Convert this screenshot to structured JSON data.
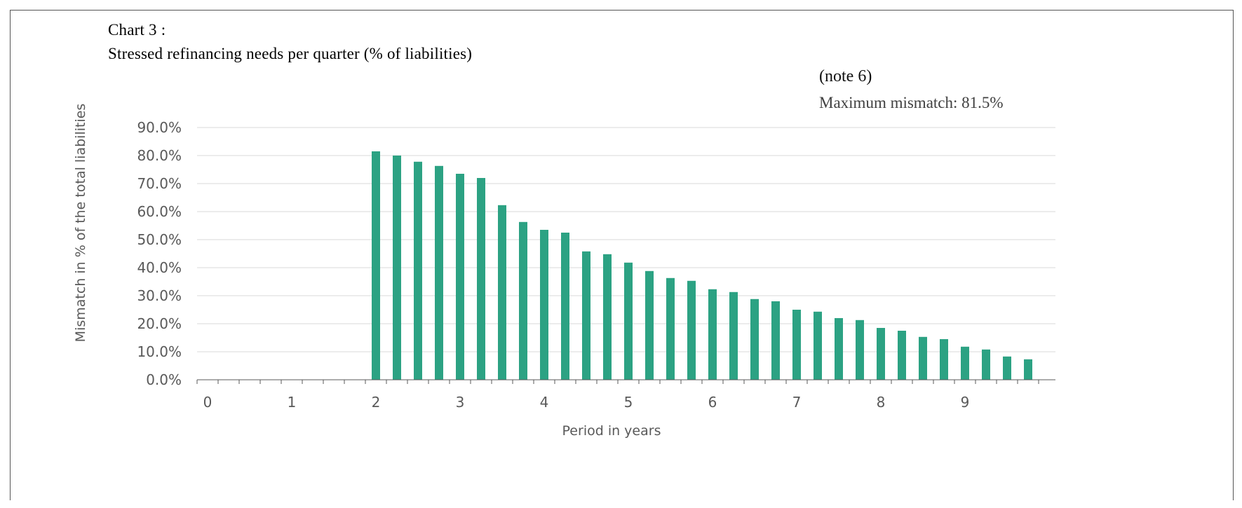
{
  "chart": {
    "label": "Chart 3 :",
    "title": "Stressed refinancing needs per quarter  (% of liabilities)",
    "note": "(note 6)",
    "max_text": "Maximum mismatch: 81.5%"
  },
  "chart_data": {
    "type": "bar",
    "xlabel": "Period in years",
    "ylabel": "Mismatch in % of the total liabilities",
    "ylim": [
      0,
      90
    ],
    "y_ticks": [
      "0.0%",
      "10.0%",
      "20.0%",
      "30.0%",
      "40.0%",
      "50.0%",
      "60.0%",
      "70.0%",
      "80.0%",
      "90.0%"
    ],
    "x_ticks": [
      "0",
      "1",
      "2",
      "3",
      "4",
      "5",
      "6",
      "7",
      "8",
      "9"
    ],
    "grid": true,
    "color": "#2ca283",
    "x": [
      2.0,
      2.25,
      2.5,
      2.75,
      3.0,
      3.25,
      3.5,
      3.75,
      4.0,
      4.25,
      4.5,
      4.75,
      5.0,
      5.25,
      5.5,
      5.75,
      6.0,
      6.25,
      6.5,
      6.75,
      7.0,
      7.25,
      7.5,
      7.75,
      8.0,
      8.25,
      8.5,
      8.75,
      9.0,
      9.25,
      9.5,
      9.75
    ],
    "values": [
      81.5,
      80.0,
      77.8,
      76.3,
      73.5,
      72.0,
      62.3,
      56.3,
      53.5,
      52.5,
      45.8,
      44.8,
      41.8,
      38.8,
      36.3,
      35.3,
      32.3,
      31.3,
      28.8,
      28.0,
      25.0,
      24.3,
      22.0,
      21.3,
      18.5,
      17.5,
      15.3,
      14.5,
      11.8,
      10.8,
      8.3,
      7.3
    ]
  }
}
